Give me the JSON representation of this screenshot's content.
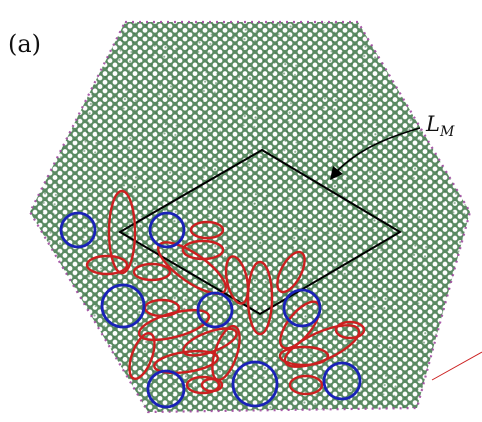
{
  "figure": {
    "panel_label": "(a)",
    "supercell_label": "L",
    "supercell_label_subscript": "M",
    "colors": {
      "lattice_bond": "#5a8a62",
      "lattice_hole": "#ffffff",
      "edge_atom": "#a04aa0",
      "outline": "#000000",
      "ellipse_stroke": "#cc2020",
      "circle_stroke": "#1a22b8",
      "background": "#ffffff"
    },
    "ellipse_count": 22,
    "circle_count": 9
  }
}
